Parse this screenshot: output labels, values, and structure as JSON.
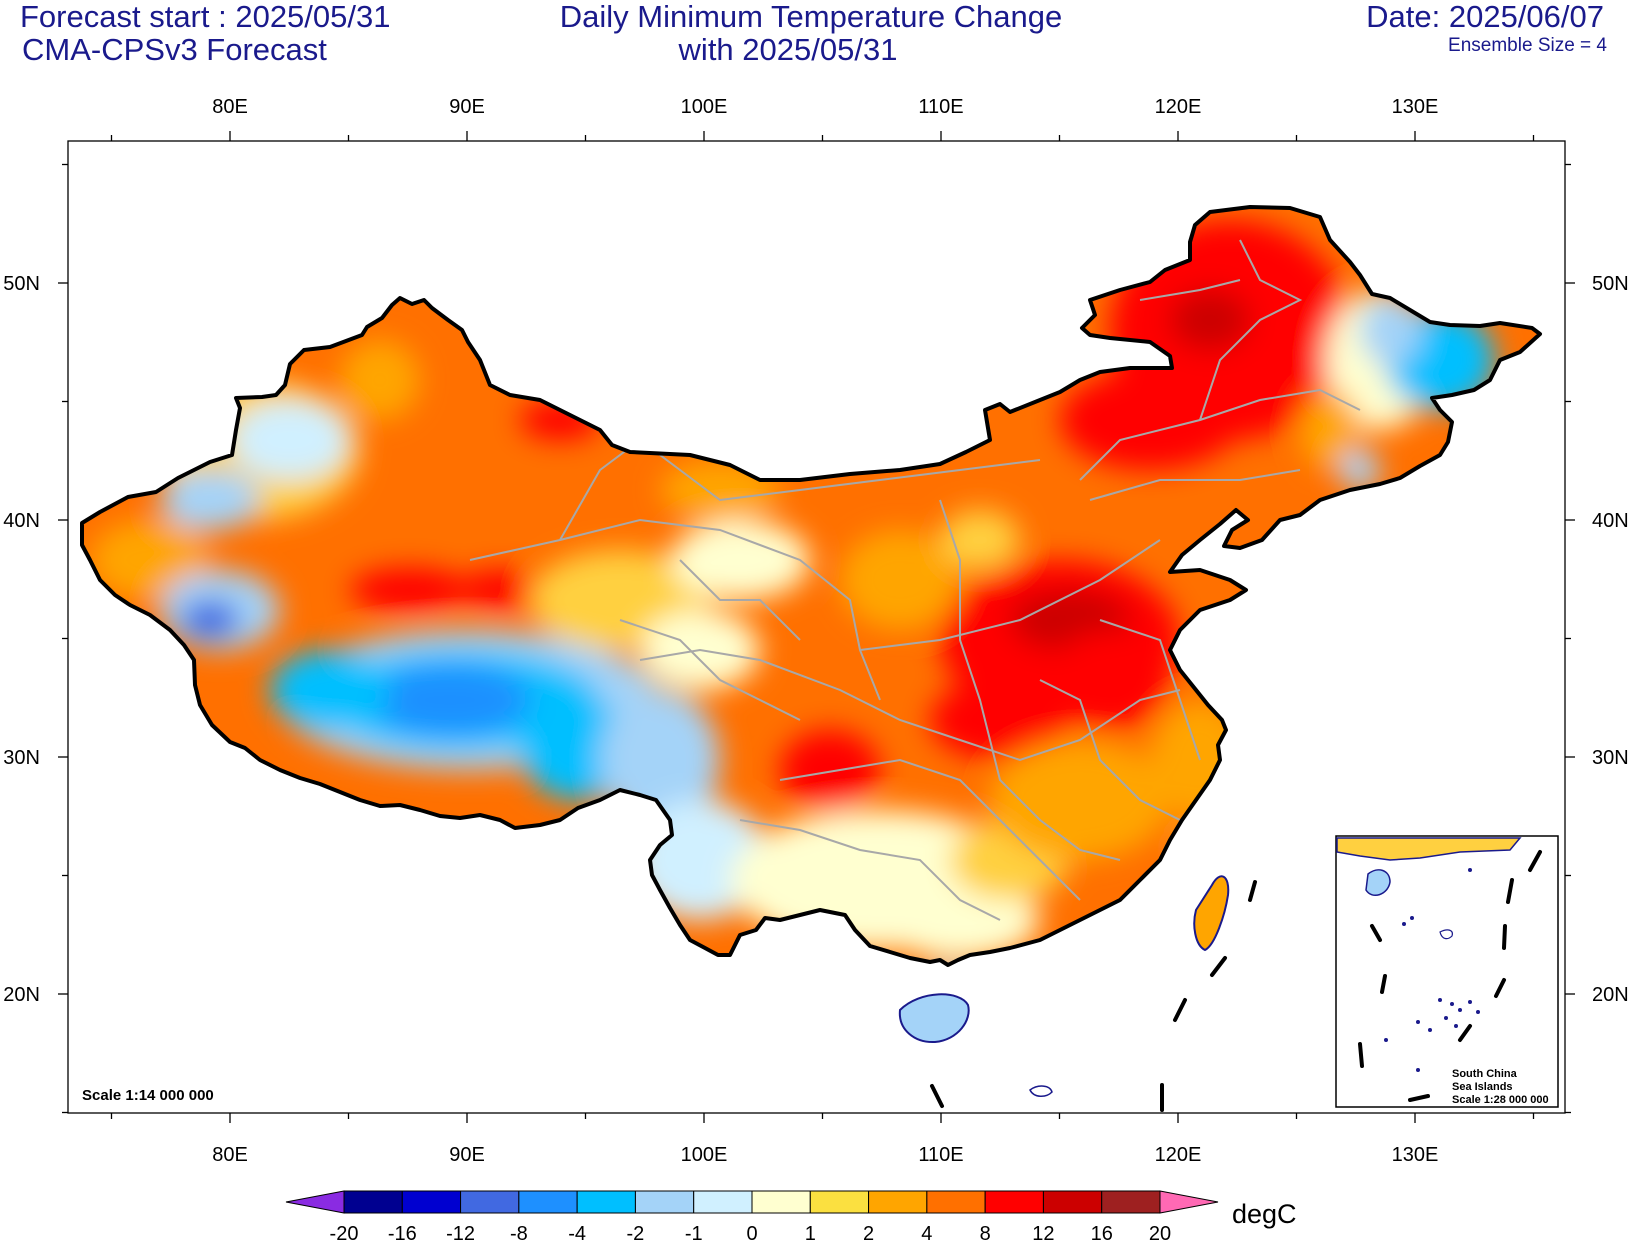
{
  "header": {
    "forecast_start": "Forecast start : 2025/05/31",
    "model": "CMA-CPSv3 Forecast",
    "title_line1": "Daily Minimum Temperature Change",
    "title_line2": "with 2025/05/31",
    "date": "Date: 2025/06/07",
    "ensemble": "Ensemble Size = 4"
  },
  "map": {
    "lon_labels": [
      "80E",
      "90E",
      "100E",
      "110E",
      "120E",
      "130E"
    ],
    "lat_labels": [
      "50N",
      "40N",
      "30N",
      "20N"
    ],
    "lon_range": [
      73.5,
      135.5
    ],
    "lat_range": [
      15,
      56
    ],
    "scale_text": "Scale 1:14 000 000",
    "inset": {
      "line1": "South China",
      "line2": "Sea Islands",
      "line3": "Scale 1:28 000 000"
    }
  },
  "colorbar": {
    "labels": [
      "-20",
      "-16",
      "-12",
      "-8",
      "-4",
      "-2",
      "-1",
      "0",
      "1",
      "2",
      "4",
      "8",
      "12",
      "16",
      "20"
    ],
    "colors": [
      "#8a2be2",
      "#000090",
      "#0000d0",
      "#4169e1",
      "#1e90ff",
      "#00bfff",
      "#a4d3f8",
      "#d0f0ff",
      "#ffffd0",
      "#fbe040",
      "#ffa500",
      "#ff7000",
      "#ff0000",
      "#cc0000",
      "#9e2020",
      "#ff69b4"
    ],
    "unit": "degC"
  },
  "colors": {
    "header_text": "#1a1a8c",
    "border_line": "#000000",
    "province_line": "#a8a8a8",
    "coast_line": "#1a1a8c"
  }
}
